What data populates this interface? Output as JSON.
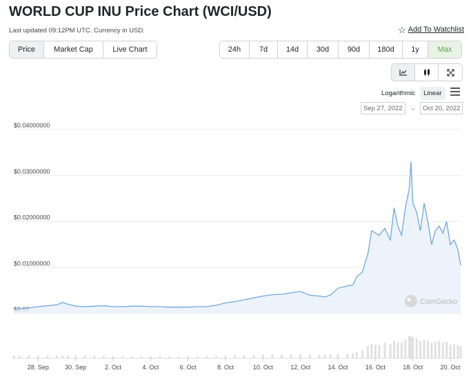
{
  "header": {
    "title": "WORLD CUP INU Price Chart (WCI/USD)",
    "updated": "Last updated 09:12PM UTC. Currency in USD.",
    "watchlist_label": "Add To Watchlist"
  },
  "metric_tabs": [
    "Price",
    "Market Cap",
    "Live Chart"
  ],
  "range_tabs": [
    "24h",
    "7d",
    "14d",
    "30d",
    "90d",
    "180d",
    "1y",
    "Max"
  ],
  "scale": {
    "log_label": "Logarithmic",
    "linear_label": "Linear"
  },
  "date_range": {
    "from": "Sep 27, 2022",
    "arrow": "→",
    "to": "Oct 20, 2022"
  },
  "watermark": "CoinGecko",
  "colors": {
    "line": "#6fa8dc",
    "fill": "#e7f0f9",
    "volume": "#e0e0e0",
    "active_green": "#5aa34a"
  },
  "chart_data": {
    "type": "area",
    "y_ticks": [
      "$0.04000000",
      "$0.03000000",
      "$0.02000000",
      "$0.01000000",
      "$0.00"
    ],
    "ylim": [
      0,
      0.04
    ],
    "x_ticks": [
      "28. Sep",
      "30. Sep",
      "2. Oct",
      "4. Oct",
      "6. Oct",
      "8. Oct",
      "10. Oct",
      "12. Oct",
      "14. Oct",
      "16. Oct",
      "18. Oct",
      "20. Oct"
    ],
    "x_domain": [
      26.7,
      50.55
    ],
    "x_tick_days": [
      28,
      30,
      32,
      34,
      36,
      38,
      40,
      42,
      44,
      46,
      48,
      50
    ],
    "series": [
      {
        "x": [
          26.7,
          27.0,
          27.5,
          28.0,
          28.5,
          29.0,
          29.3,
          29.6,
          30.0,
          30.5,
          31.0,
          31.5,
          32.0,
          32.5,
          33.0,
          33.5,
          34.0,
          34.5,
          35.0,
          35.5,
          36.0,
          36.5,
          37.0,
          37.5,
          38.0,
          38.5,
          39.0,
          39.5,
          40.0,
          40.5,
          41.0,
          41.5,
          42.0,
          42.5,
          43.0,
          43.3,
          43.6,
          44.0,
          44.5,
          44.8,
          45.0,
          45.3,
          45.6,
          45.8,
          46.0,
          46.2,
          46.5,
          46.8,
          47.0,
          47.2,
          47.4,
          47.6,
          47.8,
          47.9,
          48.0,
          48.2,
          48.4,
          48.6,
          48.8,
          49.0,
          49.2,
          49.4,
          49.6,
          49.8,
          50.0,
          50.2,
          50.4,
          50.55
        ],
        "values": [
          0.0009,
          0.001,
          0.0012,
          0.0015,
          0.0017,
          0.0019,
          0.0024,
          0.002,
          0.0016,
          0.0015,
          0.0016,
          0.0017,
          0.0015,
          0.0015,
          0.0016,
          0.0016,
          0.0015,
          0.0015,
          0.0014,
          0.0014,
          0.0014,
          0.0015,
          0.0015,
          0.0018,
          0.0023,
          0.0026,
          0.003,
          0.0034,
          0.0038,
          0.0041,
          0.0042,
          0.0045,
          0.0048,
          0.004,
          0.0038,
          0.0036,
          0.004,
          0.0055,
          0.006,
          0.0062,
          0.008,
          0.009,
          0.013,
          0.018,
          0.0175,
          0.017,
          0.0185,
          0.016,
          0.023,
          0.019,
          0.017,
          0.023,
          0.027,
          0.033,
          0.024,
          0.022,
          0.018,
          0.024,
          0.02,
          0.015,
          0.018,
          0.019,
          0.0175,
          0.02,
          0.015,
          0.016,
          0.014,
          0.0105
        ]
      }
    ],
    "volume": [
      0.12,
      0.12,
      0.13,
      0.13,
      0.12,
      0.12,
      0.14,
      0.13,
      0.12,
      0.12,
      0.11,
      0.11,
      0.1,
      0.1,
      0.1,
      0.1,
      0.1,
      0.09,
      0.09,
      0.09,
      0.09,
      0.1,
      0.1,
      0.11,
      0.12,
      0.13,
      0.13,
      0.14,
      0.15,
      0.16,
      0.16,
      0.17,
      0.18,
      0.17,
      0.16,
      0.16,
      0.17,
      0.2,
      0.22,
      0.23,
      0.3,
      0.35,
      0.55,
      0.65,
      0.62,
      0.6,
      0.7,
      0.65,
      0.8,
      0.72,
      0.7,
      0.85,
      1.0,
      1.0,
      0.95,
      0.9,
      0.8,
      0.85,
      0.8,
      0.7,
      0.75,
      0.78,
      0.72,
      0.75,
      0.62,
      0.65,
      0.6,
      0.55
    ]
  }
}
